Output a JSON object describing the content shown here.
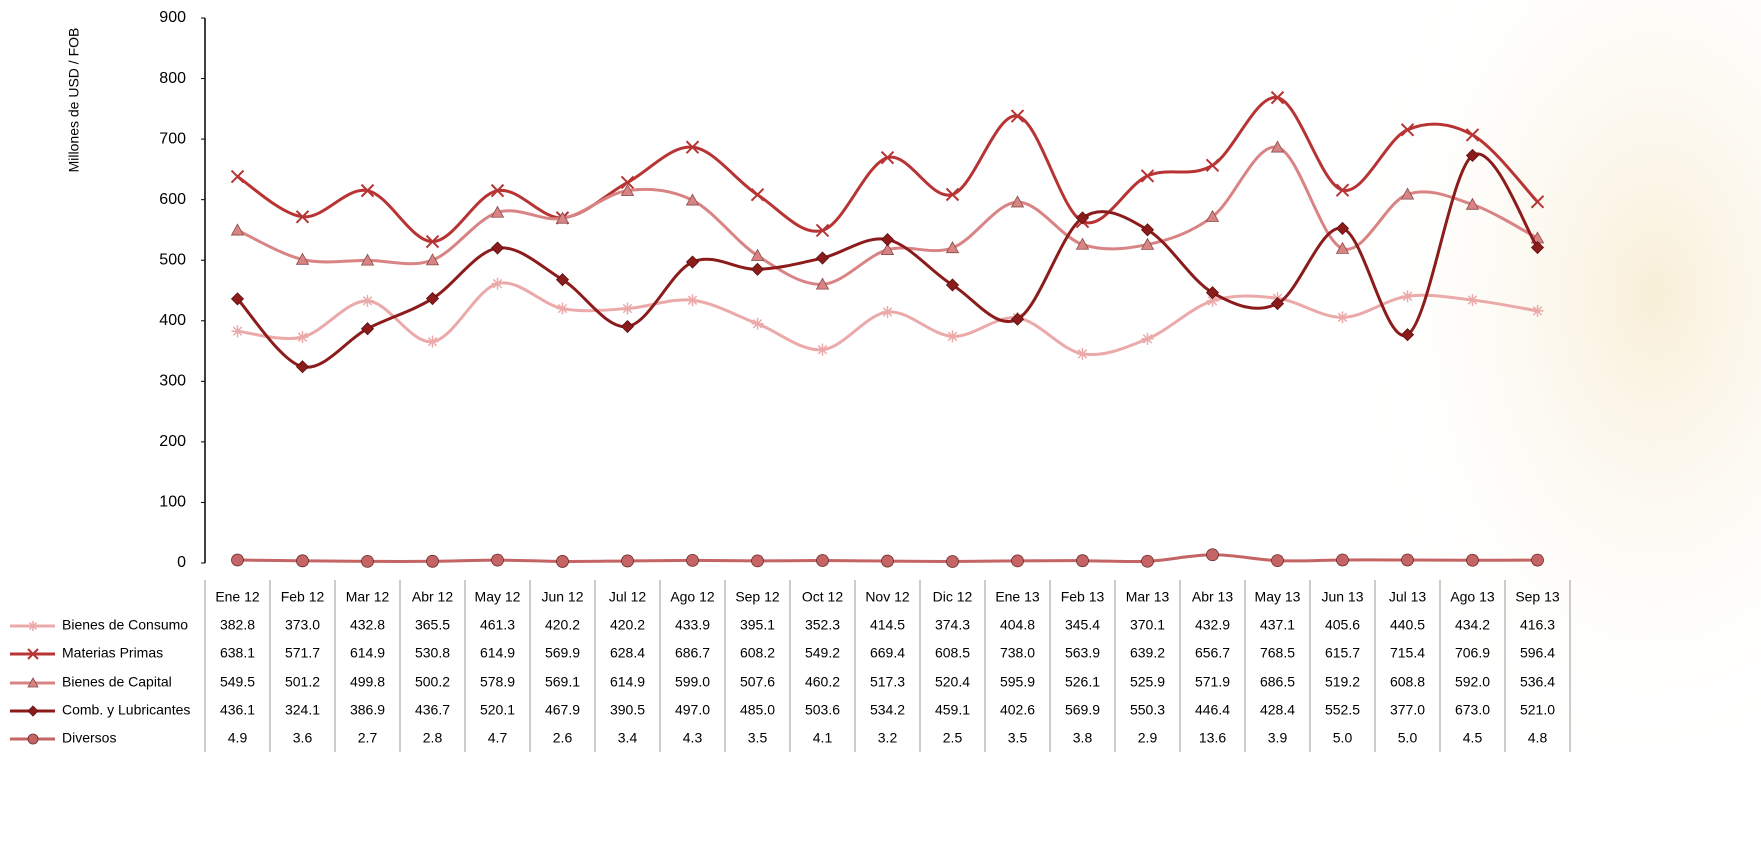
{
  "chart_data": {
    "type": "line",
    "y_label": "Millones de USD / FOB",
    "categories": [
      "Ene 12",
      "Feb 12",
      "Mar 12",
      "Abr 12",
      "May 12",
      "Jun 12",
      "Jul 12",
      "Ago 12",
      "Sep 12",
      "Oct 12",
      "Nov 12",
      "Dic 12",
      "Ene 13",
      "Feb 13",
      "Mar 13",
      "Abr 13",
      "May 13",
      "Jun 13",
      "Jul 13",
      "Ago 13",
      "Sep 13"
    ],
    "ylim": [
      0,
      900
    ],
    "yticks": [
      0,
      100,
      200,
      300,
      400,
      500,
      600,
      700,
      800,
      900
    ],
    "grid": false,
    "smooth": true,
    "series": [
      {
        "name": "Bienes de Consumo",
        "color": "#eba9a9",
        "marker": "asterisk",
        "values": [
          382.8,
          373.0,
          432.8,
          365.5,
          461.3,
          420.2,
          420.2,
          433.9,
          395.1,
          352.3,
          414.5,
          374.3,
          404.8,
          345.4,
          370.1,
          432.9,
          437.1,
          405.6,
          440.5,
          434.2,
          416.3
        ],
        "value_labels": [
          "382.8",
          "373.0",
          "432.8",
          "365.5",
          "461.3",
          "420.2",
          "420.2",
          "433.9",
          "395.1",
          "352.3",
          "414.5",
          "374.3",
          "404.8",
          "345.4",
          "370.1",
          "432.9",
          "437.1",
          "405.6",
          "440.5",
          "434.2",
          "416.3"
        ]
      },
      {
        "name": "Materias Primas",
        "color": "#b83434",
        "marker": "x",
        "values": [
          638.1,
          571.7,
          614.9,
          530.8,
          614.9,
          569.9,
          628.4,
          686.7,
          608.2,
          549.2,
          669.4,
          608.5,
          738.0,
          563.9,
          639.2,
          656.7,
          768.5,
          615.7,
          715.4,
          706.9,
          596.4
        ],
        "value_labels": [
          "638.1",
          "571.7",
          "614.9",
          "530.8",
          "614.9",
          "569.9",
          "628.4",
          "686.7",
          "608.2",
          "549.2",
          "669.4",
          "608.5",
          "738.0",
          "563.9",
          "639.2",
          "656.7",
          "768.5",
          "615.7",
          "715.4",
          "706.9",
          "596.4"
        ]
      },
      {
        "name": "Bienes de Capital",
        "color": "#d98484",
        "marker": "triangle",
        "values": [
          549.5,
          501.2,
          499.8,
          500.2,
          578.9,
          569.1,
          614.9,
          599.0,
          507.6,
          460.2,
          517.3,
          520.4,
          595.9,
          526.1,
          525.9,
          571.9,
          686.5,
          519.2,
          608.8,
          592.0,
          536.4
        ],
        "value_labels": [
          "549.5",
          "501.2",
          "499.8",
          "500.2",
          "578.9",
          "569.1",
          "614.9",
          "599.0",
          "507.6",
          "460.2",
          "517.3",
          "520.4",
          "595.9",
          "526.1",
          "525.9",
          "571.9",
          "686.5",
          "519.2",
          "608.8",
          "592.0",
          "536.4"
        ]
      },
      {
        "name": "Comb. y Lubricantes",
        "color": "#8c1c1c",
        "marker": "diamond",
        "values": [
          436.1,
          324.1,
          386.9,
          436.7,
          520.1,
          467.9,
          390.5,
          497.0,
          485.0,
          503.6,
          534.2,
          459.1,
          402.6,
          569.9,
          550.3,
          446.4,
          428.4,
          552.5,
          377.0,
          673.0,
          521.0
        ],
        "value_labels": [
          "436.1",
          "324.1",
          "386.9",
          "436.7",
          "520.1",
          "467.9",
          "390.5",
          "497.0",
          "485.0",
          "503.6",
          "534.2",
          "459.1",
          "402.6",
          "569.9",
          "550.3",
          "446.4",
          "428.4",
          "552.5",
          "377.0",
          "673.0",
          "521.0"
        ]
      },
      {
        "name": "Diversos",
        "color": "#c46464",
        "marker": "circle",
        "values": [
          4.9,
          3.6,
          2.7,
          2.8,
          4.7,
          2.6,
          3.4,
          4.3,
          3.5,
          4.1,
          3.2,
          2.5,
          3.5,
          3.8,
          2.9,
          13.6,
          3.9,
          5.0,
          5.0,
          4.5,
          4.8
        ],
        "value_labels": [
          "4.9",
          "3.6",
          "2.7",
          "2.8",
          "4.7",
          "2.6",
          "3.4",
          "4.3",
          "3.5",
          "4.1",
          "3.2",
          "2.5",
          "3.5",
          "3.8",
          "2.9",
          "13.6",
          "3.9",
          "5.0",
          "5.0",
          "4.5",
          "4.8"
        ]
      }
    ]
  }
}
